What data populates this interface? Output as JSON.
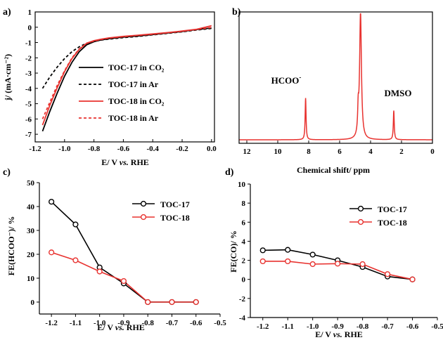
{
  "chart_data": [
    {
      "panel": "a)",
      "type": "line",
      "xlabel": "E/ V vs. RHE",
      "ylabel": "j/ (mA·cm⁻²)",
      "xlim": [
        -1.2,
        0.02
      ],
      "ylim": [
        -7.5,
        1
      ],
      "xticks": [
        "-1.2",
        "-1.0",
        "-0.8",
        "-0.6",
        "-0.4",
        "-0.2",
        "0.0"
      ],
      "yticks": [
        "1",
        "0",
        "-1",
        "-2",
        "-3",
        "-4",
        "-5",
        "-6",
        "-7"
      ],
      "legend_position": "right",
      "series": [
        {
          "name": "TOC-17 in CO₂",
          "color": "#000000",
          "dash": "solid",
          "x": [
            -1.15,
            -1.1,
            -1.05,
            -1.0,
            -0.95,
            -0.9,
            -0.85,
            -0.8,
            -0.75,
            -0.7,
            -0.6,
            -0.5,
            -0.4,
            -0.3,
            -0.2,
            -0.1,
            0.0
          ],
          "y": [
            -6.8,
            -5.5,
            -4.3,
            -3.2,
            -2.3,
            -1.6,
            -1.15,
            -0.95,
            -0.83,
            -0.75,
            -0.65,
            -0.57,
            -0.48,
            -0.38,
            -0.28,
            -0.15,
            -0.05
          ]
        },
        {
          "name": "TOC-17 in Ar",
          "color": "#000000",
          "dash": "dashed",
          "x": [
            -1.15,
            -1.1,
            -1.05,
            -1.0,
            -0.95,
            -0.9,
            -0.85,
            -0.8,
            -0.75,
            -0.7,
            -0.6,
            -0.5,
            -0.4,
            -0.3,
            -0.2,
            -0.1,
            0.0
          ],
          "y": [
            -4.0,
            -3.25,
            -2.6,
            -2.05,
            -1.6,
            -1.28,
            -1.05,
            -0.92,
            -0.84,
            -0.78,
            -0.68,
            -0.6,
            -0.5,
            -0.4,
            -0.3,
            -0.18,
            -0.08
          ]
        },
        {
          "name": "TOC-18 in CO₂",
          "color": "#e8322f",
          "dash": "solid",
          "x": [
            -1.15,
            -1.1,
            -1.05,
            -1.0,
            -0.95,
            -0.9,
            -0.85,
            -0.8,
            -0.75,
            -0.7,
            -0.6,
            -0.5,
            -0.4,
            -0.3,
            -0.2,
            -0.1,
            0.0
          ],
          "y": [
            -6.4,
            -5.1,
            -3.95,
            -2.9,
            -2.05,
            -1.45,
            -1.05,
            -0.88,
            -0.78,
            -0.7,
            -0.6,
            -0.52,
            -0.44,
            -0.35,
            -0.25,
            -0.13,
            0.1
          ]
        },
        {
          "name": "TOC-18 in Ar",
          "color": "#e8322f",
          "dash": "dashed",
          "x": [
            -1.15,
            -1.1,
            -1.05,
            -1.0,
            -0.95,
            -0.9,
            -0.85,
            -0.8,
            -0.75,
            -0.7,
            -0.6,
            -0.5,
            -0.4,
            -0.3,
            -0.2,
            -0.1,
            0.0
          ],
          "y": [
            -6.0,
            -4.9,
            -3.8,
            -2.85,
            -2.0,
            -1.42,
            -1.05,
            -0.9,
            -0.8,
            -0.72,
            -0.62,
            -0.54,
            -0.46,
            -0.37,
            -0.27,
            -0.15,
            -0.02
          ]
        }
      ]
    },
    {
      "panel": "b)",
      "type": "line",
      "xlabel": "Chemical shift/ ppm",
      "xlim": [
        12.5,
        0
      ],
      "xticks": [
        "12",
        "10",
        "8",
        "6",
        "4",
        "2",
        "0"
      ],
      "annotations": [
        "HCOO⁻",
        "DMSO"
      ],
      "series": [
        {
          "name": "",
          "color": "#e8322f",
          "peaks": [
            {
              "ppm": 8.2,
              "height": 0.33,
              "width": 0.035
            },
            {
              "ppm": 4.8,
              "height": 0.18,
              "width": 0.04
            },
            {
              "ppm": 4.65,
              "height": 1.0,
              "width": 0.07
            },
            {
              "ppm": 2.5,
              "height": 0.23,
              "width": 0.035
            }
          ]
        }
      ]
    },
    {
      "panel": "c)",
      "type": "line",
      "xlabel": "E/ V vs. RHE",
      "ylabel": "FE(HCOO⁻)/ %",
      "xlim": [
        -1.25,
        -0.5
      ],
      "ylim": [
        -5,
        50
      ],
      "xticks": [
        "-1.2",
        "-1.1",
        "-1.0",
        "-0.9",
        "-0.8",
        "-0.7",
        "-0.6",
        "-0.5"
      ],
      "yticks": [
        "50",
        "40",
        "30",
        "20",
        "10",
        "0"
      ],
      "legend_position": "top-right",
      "x": [
        -1.2,
        -1.1,
        -1.0,
        -0.9,
        -0.8,
        -0.7,
        -0.6
      ],
      "series": [
        {
          "name": "TOC-17",
          "color": "#000000",
          "values": [
            42,
            32.5,
            14.5,
            7.8,
            0,
            0,
            0
          ]
        },
        {
          "name": "TOC-18",
          "color": "#e8322f",
          "values": [
            20.8,
            17.5,
            12.8,
            8.8,
            0,
            0,
            0
          ]
        }
      ]
    },
    {
      "panel": "d)",
      "type": "line",
      "xlabel": "E/ V vs. RHE",
      "ylabel": "FE(CO)/ %",
      "xlim": [
        -1.25,
        -0.5
      ],
      "ylim": [
        -4,
        10
      ],
      "xticks": [
        "-1.2",
        "-1.1",
        "-1.0",
        "-0.9",
        "-0.8",
        "-0.7",
        "-0.6",
        "-0.5"
      ],
      "yticks": [
        "10",
        "8",
        "6",
        "4",
        "2",
        "0",
        "-2",
        "-4"
      ],
      "legend_position": "top-right",
      "x": [
        -1.2,
        -1.1,
        -1.0,
        -0.9,
        -0.8,
        -0.7,
        -0.6
      ],
      "series": [
        {
          "name": "TOC-17",
          "color": "#000000",
          "values": [
            3.05,
            3.1,
            2.6,
            2.0,
            1.3,
            0.3,
            0
          ]
        },
        {
          "name": "TOC-18",
          "color": "#e8322f",
          "values": [
            1.9,
            1.9,
            1.6,
            1.65,
            1.6,
            0.55,
            0
          ]
        }
      ]
    }
  ]
}
